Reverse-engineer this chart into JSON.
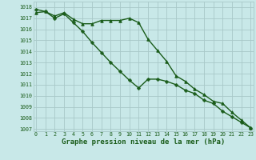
{
  "line1_triangle": {
    "x": [
      0,
      1,
      2,
      3,
      4,
      5,
      6,
      7,
      8,
      9,
      10,
      11,
      12,
      13,
      14,
      15,
      16,
      17,
      18,
      19,
      20,
      21,
      22,
      23
    ],
    "y": [
      1017.5,
      1017.6,
      1017.2,
      1017.5,
      1016.9,
      1016.5,
      1016.5,
      1016.8,
      1016.8,
      1016.8,
      1017.0,
      1016.6,
      1015.1,
      1014.1,
      1013.1,
      1011.8,
      1011.3,
      1010.6,
      1010.1,
      1009.5,
      1009.3,
      1008.5,
      1007.8,
      1007.1
    ],
    "color": "#1a5c1a",
    "marker": "^",
    "markersize": 2.5,
    "linewidth": 1.0
  },
  "line2_cross": {
    "x": [
      0,
      1,
      2,
      3,
      4,
      5,
      6,
      7,
      8,
      9,
      10,
      11,
      12,
      13,
      14,
      15,
      16,
      17,
      18,
      19,
      20,
      21,
      22,
      23
    ],
    "y": [
      1017.8,
      1017.6,
      1017.0,
      1017.4,
      1016.6,
      1015.8,
      1014.8,
      1013.9,
      1013.0,
      1012.2,
      1011.4,
      1010.7,
      1011.5,
      1011.5,
      1011.3,
      1011.0,
      1010.5,
      1010.2,
      1009.6,
      1009.3,
      1008.6,
      1008.1,
      1007.6,
      1007.1
    ],
    "color": "#1a5c1a",
    "marker": "P",
    "markersize": 2.5,
    "linewidth": 1.0
  },
  "background_color": "#c8e8e8",
  "grid_color": "#a8c8c8",
  "title": "Graphe pression niveau de la mer (hPa)",
  "ylim": [
    1006.8,
    1018.5
  ],
  "xlim": [
    -0.3,
    23.3
  ],
  "yticks": [
    1007,
    1008,
    1009,
    1010,
    1011,
    1012,
    1013,
    1014,
    1015,
    1016,
    1017,
    1018
  ],
  "xticks": [
    0,
    1,
    2,
    3,
    4,
    5,
    6,
    7,
    8,
    9,
    10,
    11,
    12,
    13,
    14,
    15,
    16,
    17,
    18,
    19,
    20,
    21,
    22,
    23
  ],
  "tick_fontsize": 4.8,
  "title_fontsize": 6.5,
  "label_color": "#1a5c1a"
}
